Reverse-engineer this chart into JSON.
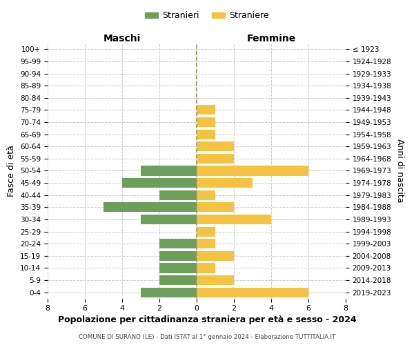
{
  "age_groups": [
    "100+",
    "95-99",
    "90-94",
    "85-89",
    "80-84",
    "75-79",
    "70-74",
    "65-69",
    "60-64",
    "55-59",
    "50-54",
    "45-49",
    "40-44",
    "35-39",
    "30-34",
    "25-29",
    "20-24",
    "15-19",
    "10-14",
    "5-9",
    "0-4"
  ],
  "birth_years": [
    "≤ 1923",
    "1924-1928",
    "1929-1933",
    "1934-1938",
    "1939-1943",
    "1944-1948",
    "1949-1953",
    "1954-1958",
    "1959-1963",
    "1964-1968",
    "1969-1973",
    "1974-1978",
    "1979-1983",
    "1984-1988",
    "1989-1993",
    "1994-1998",
    "1999-2003",
    "2004-2008",
    "2009-2013",
    "2014-2018",
    "2019-2023"
  ],
  "maschi": [
    0,
    0,
    0,
    0,
    0,
    0,
    0,
    0,
    0,
    0,
    3,
    4,
    2,
    5,
    3,
    0,
    2,
    2,
    2,
    2,
    3
  ],
  "femmine": [
    0,
    0,
    0,
    0,
    0,
    1,
    1,
    1,
    2,
    2,
    6,
    3,
    1,
    2,
    4,
    1,
    1,
    2,
    1,
    2,
    6
  ],
  "maschi_color": "#6d9e5a",
  "femmine_color": "#f5c242",
  "background_color": "#ffffff",
  "grid_color": "#cccccc",
  "title": "Popolazione per cittadinanza straniera per età e sesso - 2024",
  "subtitle": "COMUNE DI SURANO (LE) - Dati ISTAT al 1° gennaio 2024 - Elaborazione TUTTITALIA.IT",
  "ylabel_left": "Fasce di età",
  "ylabel_right": "Anni di nascita",
  "xlabel_maschi": "Maschi",
  "xlabel_femmine": "Femmine",
  "legend_maschi": "Stranieri",
  "legend_femmine": "Straniere",
  "xlim": 8,
  "bar_height": 0.8
}
